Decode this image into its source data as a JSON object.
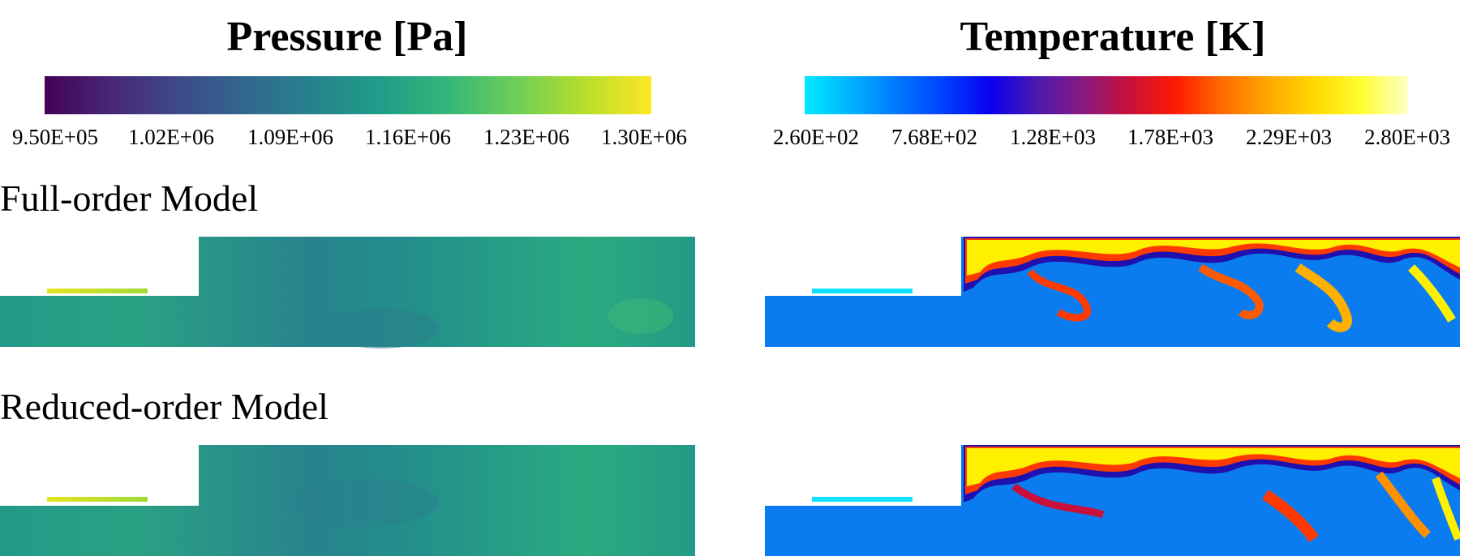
{
  "panels": {
    "pressure": {
      "title": "Pressure [Pa]",
      "colormap": [
        "#440154",
        "#482878",
        "#3e4a89",
        "#31688e",
        "#26828e",
        "#1f9e89",
        "#35b779",
        "#6ece58",
        "#b5de2b",
        "#fde725"
      ],
      "ticks": [
        "9.50E+05",
        "1.02E+06",
        "1.09E+06",
        "1.16E+06",
        "1.23E+06",
        "1.30E+06"
      ]
    },
    "temperature": {
      "title": "Temperature [K]",
      "colormap": [
        "#00eaff",
        "#00b2ff",
        "#0077ff",
        "#0040ff",
        "#0a00f0",
        "#4b1ab0",
        "#8a1a80",
        "#c8103a",
        "#ff1a00",
        "#ff6a00",
        "#ffa800",
        "#ffd800",
        "#ffff33",
        "#ffffc8"
      ],
      "ticks": [
        "2.60E+02",
        "7.68E+02",
        "1.28E+03",
        "1.78E+03",
        "2.29E+03",
        "2.80E+03"
      ]
    }
  },
  "rows": {
    "full": {
      "label": "Full-order Model"
    },
    "reduced": {
      "label": "Reduced-order Model"
    }
  },
  "field_colors": {
    "pressure_base": "#22918b",
    "pressure_low": "#2a788e",
    "pressure_high": "#31b57b",
    "injector_pressure": "#d8e22c",
    "temperature_base": "#0a7cf0",
    "injector_temperature": "#10e0ff",
    "flame_hot": "#fff000",
    "flame_mid": "#ff3a00",
    "flame_edge": "#b0004a",
    "flame_dark": "#2010b0"
  }
}
